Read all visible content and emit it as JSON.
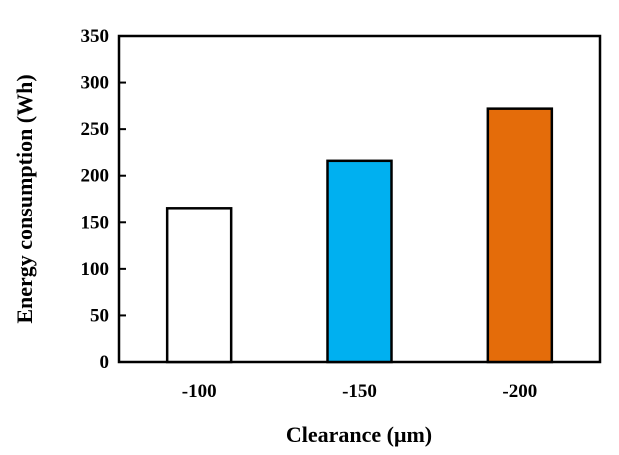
{
  "chart_data": {
    "type": "bar",
    "categories": [
      "-100",
      "-150",
      "-200"
    ],
    "values": [
      165,
      216,
      272
    ],
    "bar_colors": [
      "#ffffff",
      "#00b0f0",
      "#e46c0a"
    ],
    "ylim": [
      0,
      350
    ],
    "yticks": [
      "0",
      "50",
      "100",
      "150",
      "200",
      "250",
      "300",
      "350"
    ],
    "xlabel": "Clearance (μm)",
    "ylabel": "Energy consumption (Wh)",
    "grid": false,
    "legend": "none"
  }
}
